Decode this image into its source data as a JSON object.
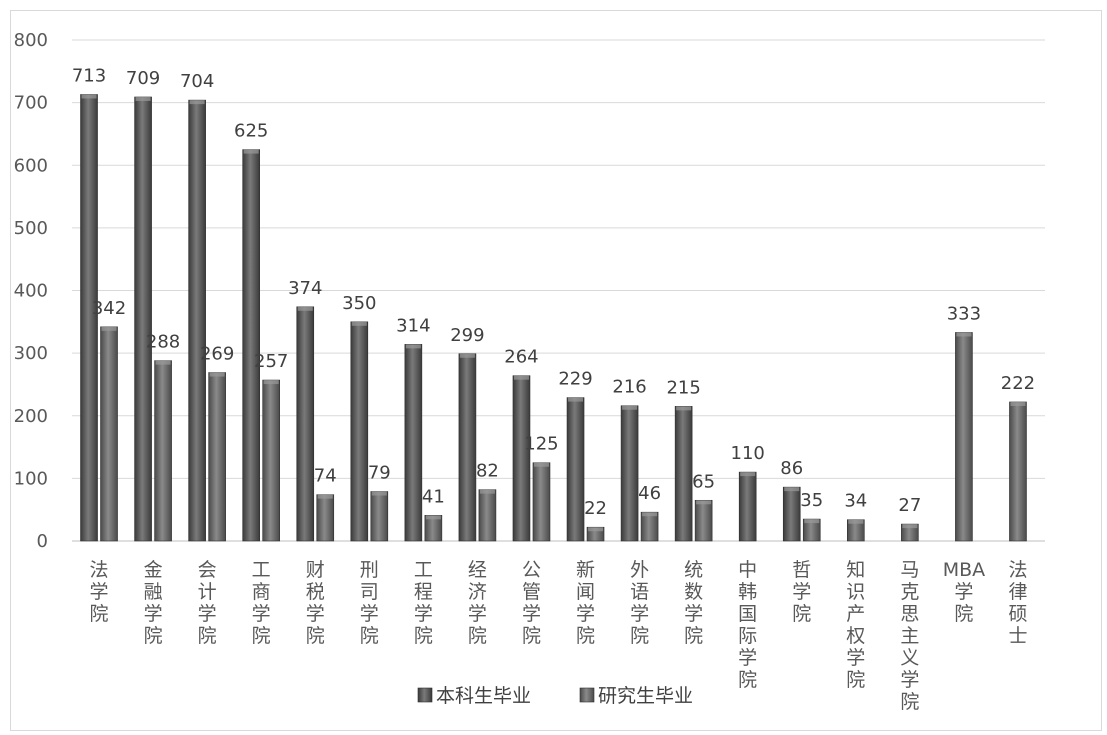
{
  "chart_data": {
    "type": "bar",
    "categories": [
      "法学院",
      "金融学院",
      "会计学院",
      "工商学院",
      "财税学院",
      "刑司学院",
      "工程学院",
      "经济学院",
      "公管学院",
      "新闻学院",
      "外语学院",
      "统数学院",
      "中韩国际学院",
      "哲学院",
      "知识产权学院",
      "马克思主义学院",
      "MBA学院",
      "法律硕士"
    ],
    "series": [
      {
        "name": "本科生毕业",
        "values": [
          713,
          709,
          704,
          625,
          374,
          350,
          314,
          299,
          264,
          229,
          216,
          215,
          110,
          86,
          null,
          null,
          null,
          null
        ],
        "color": "#5a5a5a"
      },
      {
        "name": "研究生毕业",
        "values": [
          342,
          288,
          269,
          257,
          74,
          79,
          41,
          82,
          125,
          22,
          46,
          65,
          null,
          35,
          34,
          27,
          333,
          222
        ],
        "color": "#6b6b6b"
      }
    ],
    "title": "",
    "xlabel": "",
    "ylabel": "",
    "ylim": [
      0,
      800
    ],
    "yticks": [
      "0",
      "100",
      "200",
      "300",
      "400",
      "500",
      "600",
      "700",
      "800"
    ],
    "grid": true,
    "legend_position": "bottom"
  }
}
